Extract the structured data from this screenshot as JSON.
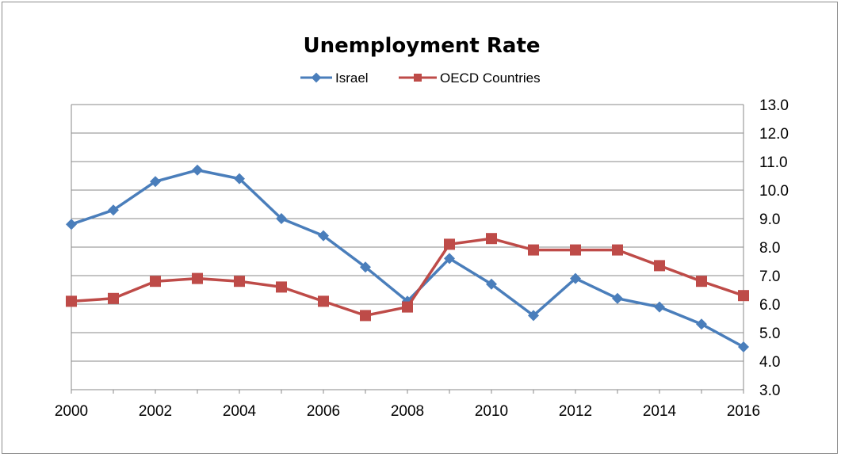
{
  "chart_data": {
    "type": "line",
    "title": "Unemployment Rate",
    "xlabel": "",
    "ylabel": "",
    "x": [
      2000,
      2001,
      2002,
      2003,
      2004,
      2005,
      2006,
      2007,
      2008,
      2009,
      2010,
      2011,
      2012,
      2013,
      2014,
      2015,
      2016
    ],
    "x_tick_labels": [
      "2000",
      "2002",
      "2004",
      "2006",
      "2008",
      "2010",
      "2012",
      "2014",
      "2016"
    ],
    "y_tick_labels": [
      "3.0",
      "4.0",
      "5.0",
      "6.0",
      "7.0",
      "8.0",
      "9.0",
      "10.0",
      "11.0",
      "12.0",
      "13.0"
    ],
    "xlim": [
      2000,
      2016
    ],
    "ylim": [
      3.0,
      13.0
    ],
    "y_axis_side": "right",
    "grid": "horizontal",
    "legend_position": "top-center",
    "series": [
      {
        "name": "Israel",
        "color": "#4a7ebb",
        "marker": "diamond",
        "values": [
          8.8,
          9.3,
          10.3,
          10.7,
          10.4,
          9.0,
          8.4,
          7.3,
          6.1,
          7.6,
          6.7,
          5.6,
          6.9,
          6.2,
          5.9,
          5.3,
          4.5
        ]
      },
      {
        "name": "OECD Countries",
        "color": "#be4b48",
        "marker": "square",
        "values": [
          6.1,
          6.2,
          6.8,
          6.9,
          6.8,
          6.6,
          6.1,
          5.6,
          5.9,
          8.1,
          8.3,
          7.9,
          7.9,
          7.9,
          7.35,
          6.8,
          6.3
        ]
      }
    ]
  }
}
